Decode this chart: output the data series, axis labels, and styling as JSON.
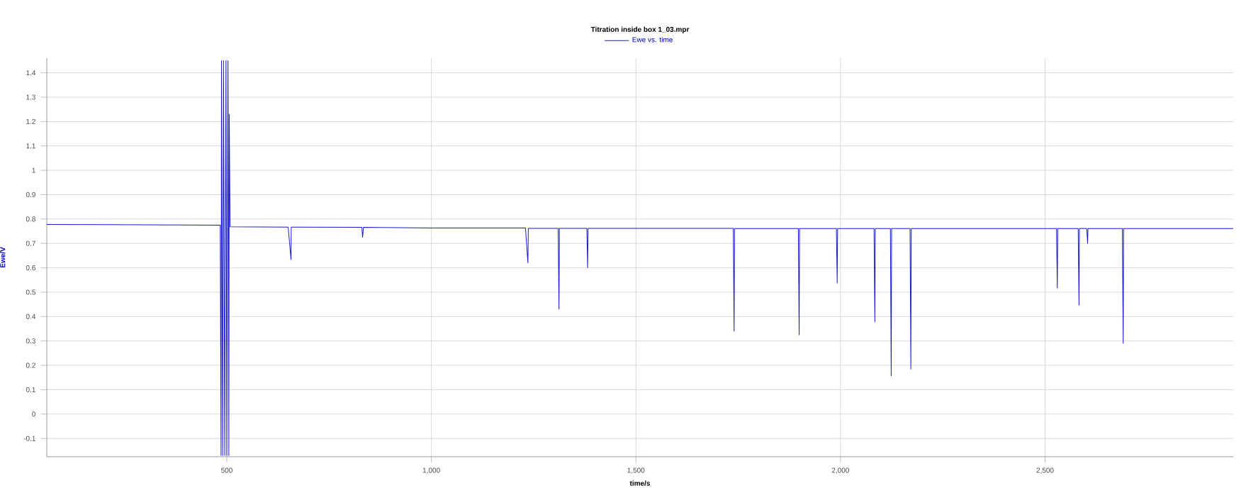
{
  "chart_data": {
    "type": "line",
    "title": "Titration inside box 1_03.mpr",
    "xlabel": "time/s",
    "ylabel": "Ewe/V",
    "xlim": [
      60,
      2960
    ],
    "ylim": [
      -0.175,
      1.46
    ],
    "xticks": [
      500,
      {
        "value": 1000,
        "label": "1,000"
      },
      {
        "value": 1500,
        "label": "1,500"
      },
      {
        "value": 2000,
        "label": "2,000"
      },
      {
        "value": 2500,
        "label": "2,500"
      }
    ],
    "yticks": [
      -0.1,
      0,
      0.1,
      0.2,
      0.3,
      0.4,
      0.5,
      0.6,
      0.7,
      0.8,
      0.9,
      1,
      1.1,
      1.2,
      1.3,
      1.4
    ],
    "grid": true,
    "legend": "top",
    "marker": "none",
    "line_style": "solid",
    "series": [
      {
        "name": "Ewe vs. time",
        "color": "#1a1acc",
        "x": [
          60,
          200,
          300,
          484,
          486,
          487,
          490,
          492,
          495,
          498,
          500,
          503,
          505,
          506,
          508,
          650,
          657,
          657.5,
          660,
          830,
          832,
          834,
          1000,
          1230,
          1236,
          1237,
          1310,
          1312,
          1313,
          1380,
          1382,
          1383,
          1600,
          1738,
          1740,
          1741,
          1897,
          1899,
          1900,
          1990,
          1992,
          1993,
          2082,
          2084,
          2085,
          2122,
          2124,
          2125,
          2170,
          2172,
          2173,
          2528,
          2530,
          2531,
          2581,
          2583,
          2584,
          2602,
          2604,
          2605,
          2689,
          2691,
          2692,
          2960
        ],
        "values": [
          0.778,
          0.777,
          0.776,
          0.775,
          -0.17,
          1.45,
          -0.17,
          1.45,
          -0.17,
          1.45,
          -0.17,
          1.45,
          -0.17,
          1.23,
          0.768,
          0.767,
          0.634,
          0.767,
          0.767,
          0.766,
          0.725,
          0.766,
          0.763,
          0.763,
          0.62,
          0.762,
          0.762,
          0.43,
          0.762,
          0.762,
          0.6,
          0.762,
          0.762,
          0.762,
          0.34,
          0.761,
          0.761,
          0.325,
          0.761,
          0.761,
          0.537,
          0.761,
          0.761,
          0.378,
          0.761,
          0.761,
          0.157,
          0.761,
          0.761,
          0.184,
          0.761,
          0.761,
          0.517,
          0.761,
          0.761,
          0.446,
          0.761,
          0.761,
          0.7,
          0.761,
          0.761,
          0.29,
          0.761,
          0.761
        ]
      }
    ]
  }
}
